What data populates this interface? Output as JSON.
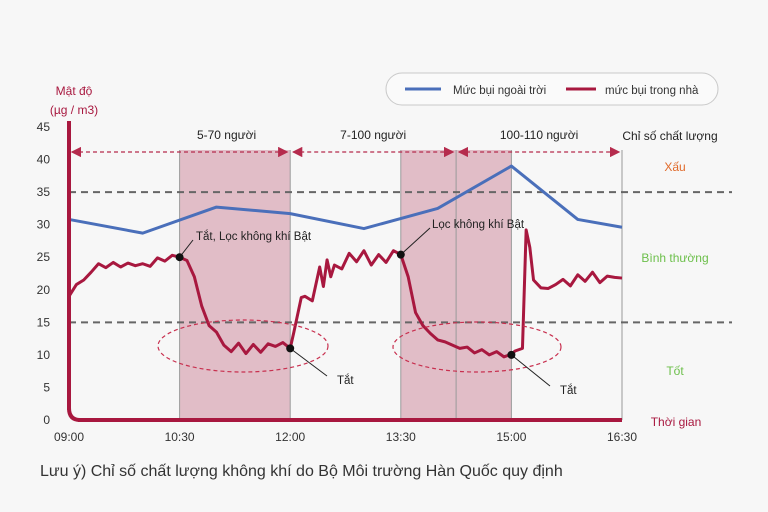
{
  "chart_data": {
    "type": "line",
    "ylabel": [
      "Mật độ",
      "(µg / m3)"
    ],
    "xlabel": "Thời gian",
    "ylim": [
      0,
      45
    ],
    "yticks": [
      0,
      5,
      10,
      15,
      20,
      25,
      30,
      35,
      40,
      45
    ],
    "xticks": [
      "09:00",
      "10:30",
      "12:00",
      "13:30",
      "15:00",
      "16:30"
    ],
    "xlim_hours": [
      9,
      16.5
    ],
    "grid": false,
    "reference_lines": [
      15,
      35
    ],
    "legend": {
      "placement": "top-right",
      "items": [
        {
          "label": "Mức bụi ngoài trời",
          "color": "#4a6fba"
        },
        {
          "label": "mức bụi trong nhà",
          "color": "#a8183f"
        }
      ]
    },
    "occupancy": [
      {
        "label": "5-70 người",
        "from": 9.0,
        "to": 12.0
      },
      {
        "label": "7-100 người",
        "from": 12.0,
        "to": 14.25
      },
      {
        "label": "100-110 người",
        "from": 14.25,
        "to": 16.5
      }
    ],
    "shaded_periods": [
      {
        "from": 10.5,
        "to": 12.0
      },
      {
        "from": 13.5,
        "to": 15.0
      }
    ],
    "quality_axis": {
      "title": "Chỉ số chất lượng",
      "bands": [
        {
          "label": "Xấu",
          "color": "#e06a2a"
        },
        {
          "label": "Bình thường",
          "color": "#6cbf4a"
        },
        {
          "label": "Tốt",
          "color": "#6cbf4a"
        }
      ]
    },
    "series": [
      {
        "name": "Mức bụi ngoài trời",
        "color": "#4a6fba",
        "points": [
          [
            9.0,
            30.8
          ],
          [
            10.0,
            28.7
          ],
          [
            11.0,
            32.7
          ],
          [
            12.0,
            31.7
          ],
          [
            13.0,
            29.4
          ],
          [
            14.0,
            32.5
          ],
          [
            15.0,
            39.0
          ],
          [
            15.9,
            30.8
          ],
          [
            16.5,
            29.6
          ]
        ]
      },
      {
        "name": "mức bụi trong nhà",
        "color": "#a8183f",
        "points": [
          [
            9.0,
            19.0
          ],
          [
            9.1,
            20.8
          ],
          [
            9.2,
            21.5
          ],
          [
            9.3,
            22.7
          ],
          [
            9.4,
            24.0
          ],
          [
            9.5,
            23.4
          ],
          [
            9.6,
            24.2
          ],
          [
            9.7,
            23.5
          ],
          [
            9.8,
            24.1
          ],
          [
            9.9,
            23.7
          ],
          [
            10.0,
            24.0
          ],
          [
            10.1,
            23.6
          ],
          [
            10.2,
            24.9
          ],
          [
            10.3,
            24.4
          ],
          [
            10.4,
            25.3
          ],
          [
            10.5,
            25.0
          ],
          [
            10.6,
            24.5
          ],
          [
            10.7,
            22.0
          ],
          [
            10.8,
            17.5
          ],
          [
            10.9,
            14.5
          ],
          [
            11.0,
            13.5
          ],
          [
            11.1,
            11.5
          ],
          [
            11.2,
            10.5
          ],
          [
            11.3,
            11.8
          ],
          [
            11.4,
            10.2
          ],
          [
            11.5,
            11.6
          ],
          [
            11.6,
            10.4
          ],
          [
            11.7,
            11.7
          ],
          [
            11.8,
            11.3
          ],
          [
            11.9,
            11.9
          ],
          [
            12.0,
            11.0
          ],
          [
            12.05,
            13.5
          ],
          [
            12.15,
            18.8
          ],
          [
            12.2,
            19.0
          ],
          [
            12.3,
            18.3
          ],
          [
            12.4,
            23.5
          ],
          [
            12.45,
            20.5
          ],
          [
            12.5,
            24.6
          ],
          [
            12.55,
            22.0
          ],
          [
            12.6,
            23.8
          ],
          [
            12.7,
            23.2
          ],
          [
            12.8,
            25.6
          ],
          [
            12.9,
            24.3
          ],
          [
            13.0,
            26.0
          ],
          [
            13.1,
            23.8
          ],
          [
            13.2,
            25.4
          ],
          [
            13.3,
            24.2
          ],
          [
            13.4,
            26.0
          ],
          [
            13.5,
            25.4
          ],
          [
            13.6,
            22.0
          ],
          [
            13.7,
            16.5
          ],
          [
            13.8,
            14.5
          ],
          [
            13.9,
            13.3
          ],
          [
            14.0,
            12.3
          ],
          [
            14.1,
            12.0
          ],
          [
            14.2,
            11.5
          ],
          [
            14.3,
            11.0
          ],
          [
            14.4,
            11.2
          ],
          [
            14.5,
            10.3
          ],
          [
            14.6,
            10.8
          ],
          [
            14.7,
            10.0
          ],
          [
            14.8,
            10.5
          ],
          [
            14.9,
            9.7
          ],
          [
            15.0,
            10.1
          ],
          [
            15.05,
            10.6
          ],
          [
            15.15,
            11.0
          ],
          [
            15.2,
            29.2
          ],
          [
            15.25,
            26.5
          ],
          [
            15.3,
            21.5
          ],
          [
            15.4,
            20.3
          ],
          [
            15.5,
            20.2
          ],
          [
            15.6,
            20.8
          ],
          [
            15.7,
            21.6
          ],
          [
            15.8,
            20.6
          ],
          [
            15.9,
            22.3
          ],
          [
            16.0,
            21.3
          ],
          [
            16.1,
            22.7
          ],
          [
            16.2,
            21.1
          ],
          [
            16.3,
            22.1
          ],
          [
            16.4,
            21.9
          ],
          [
            16.5,
            21.8
          ]
        ]
      }
    ],
    "annotations": [
      {
        "text": "Tắt, Lọc không khí Bật",
        "x": 10.5,
        "y": 25.0
      },
      {
        "text": "Tắt",
        "x": 12.0,
        "y": 11.0
      },
      {
        "text": "Lọc không khí Bật",
        "x": 13.5,
        "y": 25.4
      },
      {
        "text": "Tắt",
        "x": 15.0,
        "y": 10.0
      }
    ]
  },
  "footnote": "Lưu ý) Chỉ số chất lượng không khí do Bộ Môi trường Hàn Quốc quy định"
}
